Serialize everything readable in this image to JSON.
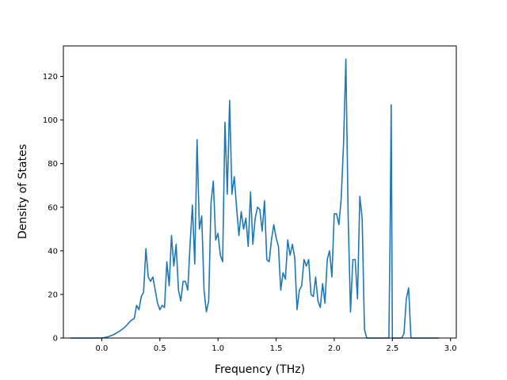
{
  "chart_data": {
    "type": "line",
    "title": "",
    "xlabel": "Frequency (THz)",
    "ylabel": "Density of States",
    "xlim": [
      -0.33,
      3.05
    ],
    "ylim": [
      0,
      134
    ],
    "x_ticks": [
      0.0,
      0.5,
      1.0,
      1.5,
      2.0,
      2.5,
      3.0
    ],
    "x_tick_labels": [
      "0.0",
      "0.5",
      "1.0",
      "1.5",
      "2.0",
      "2.5",
      "3.0"
    ],
    "y_ticks": [
      0,
      20,
      40,
      60,
      80,
      100,
      120
    ],
    "y_tick_labels": [
      "0",
      "20",
      "40",
      "60",
      "80",
      "100",
      "120"
    ],
    "grid": false,
    "legend": "none",
    "color": "#1f77b4",
    "series": [
      {
        "x": [
          -0.27,
          -0.2,
          -0.1,
          0.0,
          0.05,
          0.1,
          0.15,
          0.2,
          0.25,
          0.28,
          0.3,
          0.32,
          0.34,
          0.36,
          0.38,
          0.4,
          0.42,
          0.44,
          0.46,
          0.48,
          0.5,
          0.52,
          0.54,
          0.56,
          0.58,
          0.6,
          0.62,
          0.64,
          0.66,
          0.68,
          0.7,
          0.72,
          0.74,
          0.76,
          0.78,
          0.8,
          0.82,
          0.84,
          0.86,
          0.88,
          0.9,
          0.92,
          0.94,
          0.96,
          0.98,
          1.0,
          1.02,
          1.04,
          1.06,
          1.08,
          1.1,
          1.12,
          1.14,
          1.16,
          1.18,
          1.2,
          1.22,
          1.24,
          1.26,
          1.28,
          1.3,
          1.32,
          1.34,
          1.36,
          1.38,
          1.4,
          1.42,
          1.44,
          1.46,
          1.48,
          1.5,
          1.52,
          1.54,
          1.56,
          1.58,
          1.6,
          1.62,
          1.64,
          1.66,
          1.68,
          1.7,
          1.72,
          1.74,
          1.76,
          1.78,
          1.8,
          1.82,
          1.84,
          1.86,
          1.88,
          1.9,
          1.92,
          1.94,
          1.96,
          1.98,
          2.0,
          2.02,
          2.04,
          2.06,
          2.08,
          2.1,
          2.12,
          2.14,
          2.16,
          2.18,
          2.2,
          2.22,
          2.24,
          2.26,
          2.28,
          2.3,
          2.35,
          2.4,
          2.45,
          2.47,
          2.48,
          2.49,
          2.5,
          2.52,
          2.55,
          2.58,
          2.6,
          2.62,
          2.64,
          2.66,
          2.7,
          2.8,
          2.9
        ],
        "y": [
          0,
          0,
          0,
          0,
          0.5,
          1.5,
          3,
          5,
          8,
          9,
          15,
          13,
          19,
          21,
          41,
          28,
          26,
          28,
          22,
          16,
          13,
          15,
          14,
          35,
          24,
          47,
          33,
          43,
          22,
          17,
          26,
          26,
          22,
          43,
          61,
          34,
          91,
          50,
          56,
          22,
          12,
          17,
          62,
          72,
          45,
          48,
          38,
          35,
          99,
          66,
          109,
          66,
          74,
          60,
          47,
          58,
          50,
          55,
          42,
          67,
          43,
          55,
          60,
          59,
          49,
          63,
          36,
          35,
          45,
          52,
          46,
          42,
          22,
          30,
          27,
          45,
          38,
          43,
          37,
          13,
          22,
          24,
          36,
          33,
          36,
          20,
          19,
          28,
          17,
          14,
          25,
          16,
          36,
          40,
          28,
          57,
          57,
          52,
          64,
          89,
          128,
          55,
          12,
          36,
          36,
          18,
          65,
          55,
          4,
          0,
          0,
          0,
          0,
          0,
          0,
          45,
          107,
          0,
          0,
          0,
          0,
          2,
          18,
          23,
          0,
          0,
          0,
          0
        ]
      }
    ]
  }
}
